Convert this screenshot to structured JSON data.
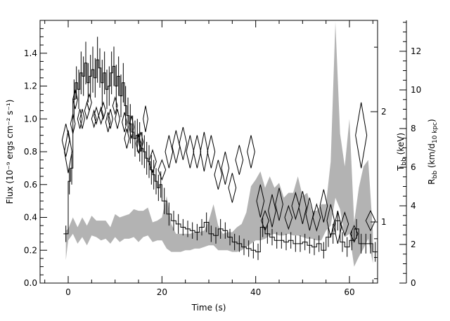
{
  "chart_data": {
    "type": "line",
    "xlabel": "Time (s)",
    "ylabel": "Flux (10⁻⁹ ergs cm⁻² s⁻¹)",
    "ylabel_right_inner": "T",
    "ylabel_right_inner_sub": "bb",
    "ylabel_right_inner_unit": " (keV)",
    "ylabel_right_outer": "R",
    "ylabel_right_outer_sub": "bb",
    "ylabel_right_outer_unit_open": " (km/d",
    "ylabel_right_outer_unit_sub": "10 kpc",
    "ylabel_right_outer_unit_close": ")",
    "xlim": [
      -6,
      66
    ],
    "ylim": [
      0,
      1.6
    ],
    "xticks": [
      0,
      20,
      40,
      60
    ],
    "xtick_labels": [
      "0",
      "20",
      "40",
      "60"
    ],
    "yticks": [
      0,
      0.2,
      0.4,
      0.6,
      0.8,
      1.0,
      1.2,
      1.4
    ],
    "ytick_labels": [
      "0.0",
      "0.2",
      "0.4",
      "0.6",
      "0.8",
      "1.0",
      "1.2",
      "1.4"
    ],
    "right_inner_ticks": [
      1,
      2
    ],
    "right_inner_tick_labels": [
      "1",
      "2"
    ],
    "right_outer_lim": [
      0,
      13.6
    ],
    "right_outer_ticks": [
      0,
      2,
      4,
      6,
      8,
      10,
      12
    ],
    "right_outer_tick_labels": [
      "0",
      "2",
      "4",
      "6",
      "8",
      "10",
      "12"
    ],
    "series": [
      {
        "kind": "flux_histogram",
        "x": [
          -1,
          0,
          0.5,
          1,
          1.5,
          2,
          2.5,
          3,
          3.5,
          4,
          4.5,
          5,
          5.5,
          6,
          6.5,
          7,
          7.5,
          8,
          8.5,
          9,
          9.5,
          10,
          10.5,
          11,
          11.5,
          12,
          12.5,
          13,
          13.5,
          14,
          14.5,
          15,
          15.5,
          16,
          16.5,
          17,
          17.5,
          18,
          18.5,
          19,
          19.5,
          20,
          21,
          22,
          23,
          24,
          25,
          26,
          27,
          28,
          29,
          30,
          31,
          32,
          33,
          34,
          35,
          36,
          37,
          38,
          39,
          40,
          41,
          42,
          43,
          44,
          45,
          46,
          47,
          48,
          49,
          50,
          51,
          52,
          53,
          54,
          55,
          56,
          57,
          58,
          59,
          60,
          61,
          62,
          63,
          64,
          65
        ],
        "y": [
          0.3,
          0.62,
          0.7,
          1.12,
          1.22,
          1.18,
          1.28,
          1.26,
          1.34,
          1.22,
          1.26,
          1.3,
          1.25,
          1.36,
          1.31,
          1.22,
          1.28,
          1.18,
          1.2,
          1.28,
          1.32,
          1.2,
          1.26,
          1.14,
          1.22,
          1.08,
          1.02,
          0.97,
          0.92,
          0.88,
          0.9,
          0.86,
          0.82,
          0.8,
          0.76,
          0.74,
          0.69,
          0.66,
          0.62,
          0.58,
          0.6,
          0.5,
          0.42,
          0.38,
          0.36,
          0.34,
          0.33,
          0.32,
          0.31,
          0.34,
          0.37,
          0.3,
          0.29,
          0.33,
          0.32,
          0.28,
          0.25,
          0.24,
          0.22,
          0.21,
          0.2,
          0.19,
          0.34,
          0.3,
          0.28,
          0.26,
          0.26,
          0.25,
          0.26,
          0.24,
          0.24,
          0.25,
          0.23,
          0.22,
          0.24,
          0.2,
          0.28,
          0.3,
          0.38,
          0.25,
          0.22,
          0.26,
          0.33,
          0.24,
          0.24,
          0.24,
          0.19
        ],
        "err": [
          0.05,
          0.08,
          0.1,
          0.12,
          0.1,
          0.12,
          0.13,
          0.12,
          0.13,
          0.12,
          0.13,
          0.14,
          0.12,
          0.14,
          0.12,
          0.14,
          0.13,
          0.12,
          0.12,
          0.13,
          0.12,
          0.13,
          0.12,
          0.13,
          0.12,
          0.12,
          0.11,
          0.12,
          0.1,
          0.11,
          0.1,
          0.12,
          0.1,
          0.1,
          0.1,
          0.1,
          0.09,
          0.09,
          0.08,
          0.08,
          0.08,
          0.08,
          0.07,
          0.06,
          0.06,
          0.05,
          0.05,
          0.05,
          0.05,
          0.05,
          0.06,
          0.05,
          0.05,
          0.06,
          0.05,
          0.05,
          0.05,
          0.05,
          0.05,
          0.05,
          0.05,
          0.05,
          0.06,
          0.06,
          0.05,
          0.05,
          0.05,
          0.05,
          0.05,
          0.05,
          0.05,
          0.05,
          0.05,
          0.05,
          0.05,
          0.05,
          0.06,
          0.06,
          0.06,
          0.06,
          0.06,
          0.06,
          0.06,
          0.06,
          0.06,
          0.06,
          0.06
        ]
      },
      {
        "kind": "temperature_diamonds",
        "x": [
          -0.5,
          0,
          1,
          1.5,
          2.5,
          3,
          4,
          4.5,
          5.5,
          6,
          7,
          7.5,
          8.5,
          9,
          10,
          10.5,
          12,
          12.5,
          13.5,
          15,
          15.5,
          16.5,
          18,
          20,
          21.5,
          23,
          24.5,
          26,
          27.5,
          29,
          30.5,
          32,
          33.5,
          35,
          36.5,
          39,
          41,
          42,
          43.5,
          45,
          47,
          48.5,
          50,
          51.5,
          53,
          54.5,
          56,
          57.5,
          59,
          61,
          62.5,
          64.5
        ],
        "x_err": [
          0.8,
          0.8,
          0.5,
          0.5,
          0.5,
          0.5,
          0.5,
          0.5,
          0.5,
          0.5,
          0.5,
          0.5,
          0.5,
          0.5,
          0.5,
          0.5,
          0.5,
          0.5,
          0.5,
          0.5,
          0.5,
          0.5,
          0.8,
          0.8,
          0.8,
          0.8,
          0.8,
          0.8,
          0.8,
          0.8,
          0.8,
          0.8,
          0.8,
          0.8,
          0.8,
          0.8,
          0.8,
          0.8,
          0.8,
          0.8,
          0.8,
          0.8,
          0.8,
          0.8,
          0.8,
          0.8,
          0.8,
          0.8,
          0.8,
          0.8,
          1.2,
          1.0
        ],
        "y": [
          0.87,
          0.8,
          0.97,
          1.12,
          1.0,
          1.0,
          1.05,
          1.1,
          1.0,
          1.02,
          1.02,
          1.05,
          0.98,
          1.0,
          1.08,
          1.0,
          0.98,
          0.88,
          0.95,
          0.85,
          0.86,
          1.0,
          0.74,
          0.69,
          0.8,
          0.83,
          0.85,
          0.8,
          0.8,
          0.8,
          0.8,
          0.66,
          0.7,
          0.58,
          0.75,
          0.8,
          0.5,
          0.38,
          0.44,
          0.48,
          0.4,
          0.47,
          0.46,
          0.42,
          0.4,
          0.47,
          0.38,
          0.34,
          0.36,
          0.3,
          0.9,
          0.38
        ],
        "y_err": [
          0.1,
          0.13,
          0.06,
          0.06,
          0.06,
          0.06,
          0.05,
          0.05,
          0.05,
          0.05,
          0.05,
          0.05,
          0.06,
          0.06,
          0.05,
          0.06,
          0.06,
          0.06,
          0.07,
          0.06,
          0.06,
          0.08,
          0.07,
          0.06,
          0.1,
          0.1,
          0.1,
          0.1,
          0.1,
          0.12,
          0.1,
          0.09,
          0.1,
          0.09,
          0.09,
          0.1,
          0.1,
          0.06,
          0.1,
          0.1,
          0.07,
          0.08,
          0.1,
          0.1,
          0.08,
          0.1,
          0.1,
          0.1,
          0.07,
          0.05,
          0.2,
          0.06
        ]
      },
      {
        "kind": "radius_band",
        "x": [
          -0.5,
          0,
          1,
          2,
          3,
          4,
          5,
          6,
          7,
          8,
          9,
          10,
          11,
          12,
          13,
          14,
          15,
          16,
          17,
          18,
          19,
          20,
          21,
          22,
          23,
          24,
          25,
          26,
          27,
          28,
          29,
          30,
          31,
          32,
          33,
          34,
          35,
          36,
          37,
          38,
          39,
          40,
          41,
          42,
          43,
          44,
          45,
          46,
          47,
          48,
          49,
          50,
          51,
          52,
          53,
          54,
          55,
          56,
          57,
          58,
          59,
          60,
          61,
          62,
          63,
          64,
          65
        ],
        "y_low": [
          0.14,
          0.26,
          0.3,
          0.24,
          0.28,
          0.23,
          0.29,
          0.28,
          0.26,
          0.27,
          0.24,
          0.28,
          0.25,
          0.27,
          0.27,
          0.28,
          0.25,
          0.28,
          0.29,
          0.25,
          0.26,
          0.26,
          0.21,
          0.19,
          0.19,
          0.19,
          0.2,
          0.2,
          0.21,
          0.21,
          0.22,
          0.23,
          0.23,
          0.2,
          0.2,
          0.2,
          0.19,
          0.19,
          0.2,
          0.22,
          0.24,
          0.26,
          0.26,
          0.27,
          0.29,
          0.3,
          0.29,
          0.29,
          0.3,
          0.29,
          0.29,
          0.28,
          0.27,
          0.27,
          0.26,
          0.26,
          0.32,
          0.35,
          0.52,
          0.45,
          0.28,
          0.3,
          0.1,
          0.16,
          0.21,
          0.27,
          0.12
        ],
        "y_high": [
          0.32,
          0.33,
          0.4,
          0.34,
          0.4,
          0.35,
          0.41,
          0.38,
          0.38,
          0.38,
          0.34,
          0.42,
          0.4,
          0.41,
          0.42,
          0.45,
          0.44,
          0.44,
          0.46,
          0.37,
          0.38,
          0.4,
          0.53,
          0.36,
          0.3,
          0.3,
          0.3,
          0.3,
          0.31,
          0.31,
          0.32,
          0.38,
          0.48,
          0.35,
          0.3,
          0.31,
          0.31,
          0.34,
          0.36,
          0.43,
          0.59,
          0.63,
          0.68,
          0.58,
          0.65,
          0.58,
          0.61,
          0.52,
          0.55,
          0.55,
          0.65,
          0.53,
          0.55,
          0.44,
          0.44,
          0.48,
          0.48,
          0.74,
          1.59,
          0.91,
          0.71,
          1.0,
          0.37,
          0.58,
          0.71,
          0.75,
          0.31
        ]
      }
    ]
  }
}
